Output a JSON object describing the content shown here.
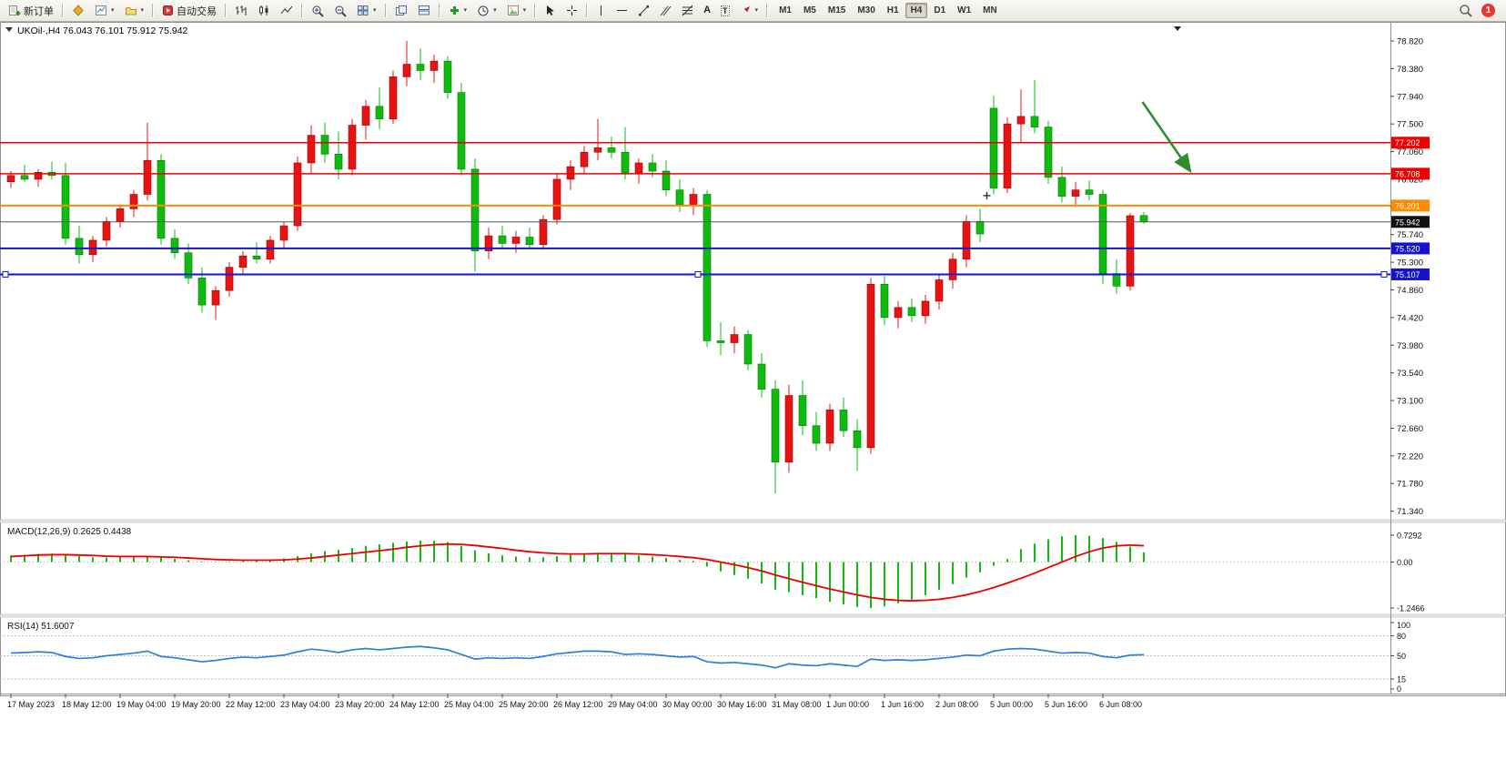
{
  "toolbar": {
    "new_order": "新订单",
    "autotrading": "自动交易",
    "timeframes": [
      "M1",
      "M5",
      "M15",
      "M30",
      "H1",
      "H4",
      "D1",
      "W1",
      "MN"
    ],
    "active_timeframe": "H4",
    "notification_badge": "1"
  },
  "chart_data": {
    "type": "candlestick",
    "title": "UKOil·,H4",
    "ohlc_text": "76.043 76.101 75.912 75.942",
    "bull_color": "#e81414",
    "bear_color": "#10bb10",
    "price_axis": {
      "min": 71.34,
      "max": 78.82,
      "labels": [
        "78.820",
        "78.380",
        "77.940",
        "77.500",
        "77.060",
        "76.620",
        "76.180",
        "75.740",
        "75.300",
        "74.860",
        "74.420",
        "73.980",
        "73.540",
        "73.100",
        "72.660",
        "72.220",
        "71.780",
        "71.340"
      ]
    },
    "time_labels": [
      "17 May 2023",
      "18 May 12:00",
      "19 May 04:00",
      "19 May 20:00",
      "22 May 12:00",
      "23 May 04:00",
      "23 May 20:00",
      "24 May 12:00",
      "25 May 04:00",
      "25 May 20:00",
      "26 May 12:00",
      "29 May 04:00",
      "30 May 00:00",
      "30 May 16:00",
      "31 May 08:00",
      "1 Jun 00:00",
      "1 Jun 16:00",
      "2 Jun 08:00",
      "5 Jun 00:00",
      "5 Jun 16:00",
      "6 Jun 08:00"
    ],
    "candles": [
      [
        76.58,
        76.75,
        76.48,
        76.68
      ],
      [
        76.68,
        76.85,
        76.58,
        76.62
      ],
      [
        76.62,
        76.78,
        76.5,
        76.73
      ],
      [
        76.73,
        76.9,
        76.62,
        76.68
      ],
      [
        76.68,
        76.88,
        75.58,
        75.68
      ],
      [
        75.68,
        75.88,
        75.28,
        75.42
      ],
      [
        75.42,
        75.72,
        75.3,
        75.65
      ],
      [
        75.65,
        76.02,
        75.55,
        75.95
      ],
      [
        75.95,
        76.22,
        75.85,
        76.15
      ],
      [
        76.15,
        76.45,
        76.02,
        76.38
      ],
      [
        76.38,
        77.52,
        76.28,
        76.92
      ],
      [
        76.92,
        77.02,
        75.58,
        75.68
      ],
      [
        75.68,
        75.82,
        75.35,
        75.45
      ],
      [
        75.45,
        75.6,
        74.95,
        75.05
      ],
      [
        75.05,
        75.22,
        74.5,
        74.62
      ],
      [
        74.62,
        74.92,
        74.38,
        74.85
      ],
      [
        74.85,
        75.3,
        74.75,
        75.22
      ],
      [
        75.22,
        75.48,
        75.1,
        75.4
      ],
      [
        75.4,
        75.62,
        75.28,
        75.35
      ],
      [
        75.35,
        75.72,
        75.28,
        75.65
      ],
      [
        75.65,
        75.95,
        75.52,
        75.88
      ],
      [
        75.88,
        76.98,
        75.8,
        76.88
      ],
      [
        76.88,
        77.48,
        76.72,
        77.32
      ],
      [
        77.32,
        77.52,
        76.88,
        77.02
      ],
      [
        77.02,
        77.38,
        76.62,
        76.78
      ],
      [
        76.78,
        77.58,
        76.68,
        77.48
      ],
      [
        77.48,
        77.88,
        77.25,
        77.78
      ],
      [
        77.78,
        78.08,
        77.42,
        77.58
      ],
      [
        77.58,
        78.35,
        77.5,
        78.25
      ],
      [
        78.25,
        78.82,
        78.1,
        78.45
      ],
      [
        78.45,
        78.7,
        78.2,
        78.35
      ],
      [
        78.35,
        78.6,
        78.15,
        78.5
      ],
      [
        78.5,
        78.58,
        77.9,
        78.0
      ],
      [
        78.0,
        78.15,
        76.68,
        76.78
      ],
      [
        76.78,
        76.95,
        75.15,
        75.48
      ],
      [
        75.48,
        75.85,
        75.35,
        75.72
      ],
      [
        75.72,
        75.88,
        75.52,
        75.6
      ],
      [
        75.6,
        75.8,
        75.45,
        75.7
      ],
      [
        75.7,
        75.85,
        75.52,
        75.58
      ],
      [
        75.58,
        76.05,
        75.5,
        75.98
      ],
      [
        75.98,
        76.72,
        75.9,
        76.62
      ],
      [
        76.62,
        76.92,
        76.45,
        76.82
      ],
      [
        76.82,
        77.15,
        76.7,
        77.05
      ],
      [
        77.05,
        77.58,
        76.92,
        77.12
      ],
      [
        77.12,
        77.3,
        76.95,
        77.05
      ],
      [
        77.05,
        77.45,
        76.62,
        76.72
      ],
      [
        76.72,
        76.95,
        76.55,
        76.88
      ],
      [
        76.88,
        77.02,
        76.65,
        76.75
      ],
      [
        76.75,
        76.92,
        76.35,
        76.45
      ],
      [
        76.45,
        76.62,
        76.1,
        76.22
      ],
      [
        76.22,
        76.48,
        76.05,
        76.38
      ],
      [
        76.38,
        76.45,
        73.95,
        74.05
      ],
      [
        74.05,
        74.35,
        73.82,
        74.02
      ],
      [
        74.02,
        74.28,
        73.85,
        74.15
      ],
      [
        74.15,
        74.22,
        73.58,
        73.68
      ],
      [
        73.68,
        73.85,
        73.15,
        73.28
      ],
      [
        73.28,
        73.42,
        71.62,
        72.12
      ],
      [
        72.12,
        73.35,
        71.95,
        73.18
      ],
      [
        73.18,
        73.42,
        72.55,
        72.7
      ],
      [
        72.7,
        72.92,
        72.3,
        72.42
      ],
      [
        72.42,
        73.05,
        72.3,
        72.95
      ],
      [
        72.95,
        73.15,
        72.52,
        72.62
      ],
      [
        72.62,
        72.8,
        71.98,
        72.35
      ],
      [
        72.35,
        75.05,
        72.25,
        74.95
      ],
      [
        74.95,
        75.08,
        74.3,
        74.42
      ],
      [
        74.42,
        74.68,
        74.25,
        74.58
      ],
      [
        74.58,
        74.72,
        74.35,
        74.45
      ],
      [
        74.45,
        74.78,
        74.32,
        74.68
      ],
      [
        74.68,
        75.12,
        74.55,
        75.02
      ],
      [
        75.02,
        75.45,
        74.88,
        75.35
      ],
      [
        75.35,
        76.05,
        75.22,
        75.95
      ],
      [
        75.95,
        76.15,
        75.62,
        75.75
      ],
      [
        77.75,
        77.95,
        76.38,
        76.48
      ],
      [
        76.48,
        77.6,
        76.4,
        77.5
      ],
      [
        77.5,
        78.05,
        77.2,
        77.62
      ],
      [
        77.62,
        78.2,
        77.35,
        77.45
      ],
      [
        77.45,
        77.55,
        76.55,
        76.65
      ],
      [
        76.65,
        76.82,
        76.25,
        76.35
      ],
      [
        76.35,
        76.58,
        76.18,
        76.45
      ],
      [
        76.45,
        76.6,
        76.28,
        76.38
      ],
      [
        76.38,
        76.45,
        74.95,
        75.12
      ],
      [
        75.12,
        75.35,
        74.8,
        74.92
      ],
      [
        74.92,
        76.08,
        74.85,
        76.04
      ],
      [
        76.043,
        76.101,
        75.912,
        75.942
      ]
    ],
    "hlines": [
      {
        "price": 77.202,
        "color": "#ee0000",
        "width": 1.6,
        "label": "77.202"
      },
      {
        "price": 76.708,
        "color": "#ee0000",
        "width": 1.6,
        "label": "76.708"
      },
      {
        "price": 76.201,
        "color": "#ff8a00",
        "width": 2,
        "label": "76.201"
      },
      {
        "price": 75.52,
        "color": "#1414d0",
        "width": 2,
        "label": "75.520"
      },
      {
        "price": 75.107,
        "color": "#1414d0",
        "width": 2,
        "label": "75.107",
        "handles": true
      }
    ],
    "current_price": {
      "value": 75.942,
      "label": "75.942",
      "color": "#111111"
    },
    "arrow": {
      "bar1": 82.9,
      "price1": 77.85,
      "bar2": 86.4,
      "price2": 76.75,
      "color": "#2e8b2e"
    },
    "cross_marker": {
      "bar": 71.5,
      "price": 76.36
    },
    "macd": {
      "name": "MACD(12,26,9)",
      "main_value": "0.2625",
      "signal_value": "0.4438",
      "scale_max": 0.7292,
      "scale_min": -1.2466,
      "scale_labels": [
        "0.7292",
        "0.00",
        "-1.2466"
      ],
      "histogram_color": "#10bb10",
      "signal_color": "#ee0000",
      "histogram": [
        0.18,
        0.2,
        0.22,
        0.23,
        0.2,
        0.16,
        0.13,
        0.12,
        0.13,
        0.15,
        0.17,
        0.13,
        0.09,
        0.05,
        0.02,
        0.01,
        0.02,
        0.04,
        0.05,
        0.07,
        0.1,
        0.16,
        0.24,
        0.3,
        0.33,
        0.38,
        0.44,
        0.48,
        0.52,
        0.56,
        0.58,
        0.58,
        0.54,
        0.44,
        0.32,
        0.24,
        0.18,
        0.15,
        0.13,
        0.13,
        0.16,
        0.2,
        0.23,
        0.25,
        0.24,
        0.21,
        0.18,
        0.15,
        0.11,
        0.06,
        0.03,
        -0.12,
        -0.25,
        -0.35,
        -0.45,
        -0.58,
        -0.75,
        -0.82,
        -0.9,
        -0.98,
        -1.08,
        -1.15,
        -1.22,
        -1.2466,
        -1.2,
        -1.12,
        -1.02,
        -0.9,
        -0.76,
        -0.6,
        -0.42,
        -0.28,
        -0.1,
        0.08,
        0.35,
        0.5,
        0.62,
        0.7,
        0.7292,
        0.71,
        0.65,
        0.55,
        0.42,
        0.2625
      ],
      "signal": [
        0.15,
        0.17,
        0.19,
        0.2,
        0.2,
        0.19,
        0.18,
        0.16,
        0.15,
        0.15,
        0.15,
        0.14,
        0.13,
        0.11,
        0.09,
        0.07,
        0.06,
        0.05,
        0.05,
        0.05,
        0.06,
        0.08,
        0.11,
        0.15,
        0.19,
        0.23,
        0.27,
        0.31,
        0.35,
        0.4,
        0.44,
        0.47,
        0.49,
        0.48,
        0.45,
        0.41,
        0.37,
        0.32,
        0.28,
        0.25,
        0.23,
        0.22,
        0.22,
        0.23,
        0.23,
        0.23,
        0.22,
        0.2,
        0.18,
        0.15,
        0.12,
        0.07,
        0.0,
        -0.07,
        -0.15,
        -0.24,
        -0.35,
        -0.45,
        -0.55,
        -0.64,
        -0.73,
        -0.81,
        -0.89,
        -0.96,
        -1.01,
        -1.04,
        -1.05,
        -1.04,
        -1.01,
        -0.96,
        -0.89,
        -0.8,
        -0.69,
        -0.57,
        -0.44,
        -0.3,
        -0.15,
        0.0,
        0.15,
        0.28,
        0.38,
        0.44,
        0.46,
        0.4438
      ]
    },
    "rsi": {
      "name": "RSI(14)",
      "value": "51.6007",
      "scale_labels": [
        "100",
        "80",
        "50",
        "15",
        "0"
      ],
      "levels": [
        80,
        50,
        15
      ],
      "color": "#2f7ed8",
      "line": [
        54,
        55,
        56,
        55,
        49,
        46,
        47,
        50,
        52,
        54,
        57,
        49,
        47,
        44,
        41,
        43,
        46,
        48,
        47,
        49,
        51,
        56,
        60,
        58,
        55,
        59,
        61,
        59,
        61,
        63,
        64,
        62,
        59,
        52,
        45,
        47,
        46,
        47,
        46,
        49,
        53,
        55,
        57,
        57,
        56,
        52,
        53,
        52,
        50,
        48,
        49,
        41,
        39,
        40,
        38,
        36,
        32,
        38,
        36,
        35,
        38,
        36,
        34,
        45,
        43,
        44,
        43,
        44,
        46,
        48,
        51,
        50,
        57,
        60,
        61,
        60,
        57,
        54,
        55,
        54,
        49,
        47,
        51,
        51.6
      ]
    }
  }
}
